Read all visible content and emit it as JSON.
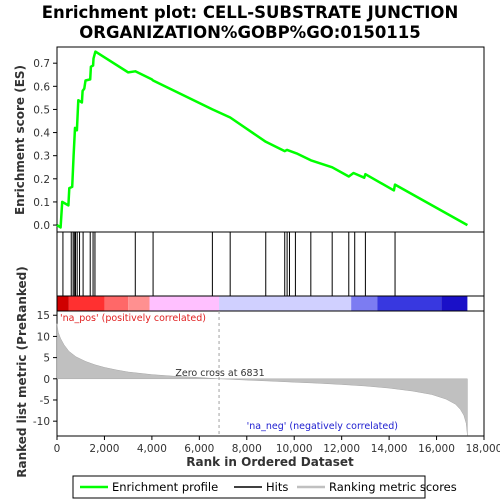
{
  "title_lines": [
    "Enrichment plot: CELL-SUBSTRATE JUNCTION",
    "ORGANIZATION%GOBP%GO:0150115"
  ],
  "colors": {
    "enrichment_line": "#00ff00",
    "hit_line": "#000000",
    "metric_fill": "#c0c0c0",
    "pos_label": "#e02020",
    "neg_label": "#2020d0",
    "zero_cross_line": "#a0a0a0"
  },
  "chart_data": [
    {
      "type": "line",
      "panel": "enrichment-profile",
      "ylabel": "Enrichment score (ES)",
      "xlim": [
        0,
        18000
      ],
      "ylim": [
        -0.03,
        0.77
      ],
      "y_ticks": [
        "0.0",
        "0.1",
        "0.2",
        "0.3",
        "0.4",
        "0.5",
        "0.6",
        "0.7"
      ],
      "grid": false,
      "series": [
        {
          "name": "Enrichment profile",
          "points": [
            [
              0,
              0.0
            ],
            [
              150,
              -0.01
            ],
            [
              220,
              0.1
            ],
            [
              480,
              0.085
            ],
            [
              520,
              0.16
            ],
            [
              640,
              0.165
            ],
            [
              700,
              0.3
            ],
            [
              760,
              0.42
            ],
            [
              840,
              0.41
            ],
            [
              900,
              0.54
            ],
            [
              1050,
              0.53
            ],
            [
              1080,
              0.58
            ],
            [
              1150,
              0.59
            ],
            [
              1200,
              0.625
            ],
            [
              1400,
              0.63
            ],
            [
              1430,
              0.685
            ],
            [
              1520,
              0.69
            ],
            [
              1540,
              0.72
            ],
            [
              1620,
              0.75
            ],
            [
              3000,
              0.66
            ],
            [
              3300,
              0.665
            ],
            [
              4000,
              0.63
            ],
            [
              4050,
              0.625
            ],
            [
              6550,
              0.5
            ],
            [
              7300,
              0.465
            ],
            [
              8800,
              0.36
            ],
            [
              9600,
              0.32
            ],
            [
              9700,
              0.325
            ],
            [
              10100,
              0.31
            ],
            [
              10700,
              0.28
            ],
            [
              11600,
              0.25
            ],
            [
              12300,
              0.21
            ],
            [
              12500,
              0.225
            ],
            [
              12950,
              0.205
            ],
            [
              13000,
              0.22
            ],
            [
              14200,
              0.15
            ],
            [
              14250,
              0.175
            ],
            [
              17300,
              0.0
            ]
          ]
        }
      ]
    },
    {
      "type": "hits",
      "panel": "gene-hits",
      "name": "Hits",
      "positions": [
        250,
        600,
        680,
        730,
        780,
        850,
        950,
        1100,
        1400,
        1520,
        1600,
        3300,
        4050,
        6550,
        7300,
        8800,
        9600,
        9700,
        9800,
        10050,
        10700,
        11600,
        12300,
        12550,
        13000,
        14250
      ]
    },
    {
      "type": "heatmap",
      "panel": "rank-color-bar",
      "segments": [
        {
          "start": 0,
          "end": 500,
          "color": "#d00000"
        },
        {
          "start": 500,
          "end": 2000,
          "color": "#ff3030"
        },
        {
          "start": 2000,
          "end": 3000,
          "color": "#ff6868"
        },
        {
          "start": 3000,
          "end": 3900,
          "color": "#ff9090"
        },
        {
          "start": 3900,
          "end": 6831,
          "color": "#ffc0ff"
        },
        {
          "start": 6831,
          "end": 12400,
          "color": "#d0d0ff"
        },
        {
          "start": 12400,
          "end": 13500,
          "color": "#7c7cf2"
        },
        {
          "start": 13500,
          "end": 16200,
          "color": "#3838e0"
        },
        {
          "start": 16200,
          "end": 17300,
          "color": "#1a10c8"
        }
      ]
    },
    {
      "type": "area",
      "panel": "ranked-list-metric",
      "name": "Ranking metric scores",
      "xlabel": "Rank in Ordered Dataset",
      "ylabel": "Ranked list metric (PreRanked)",
      "xlim": [
        0,
        18000
      ],
      "ylim": [
        -13.5,
        16
      ],
      "y_ticks": [
        15,
        10,
        5,
        0,
        -5,
        -10
      ],
      "x_ticks": [
        "0",
        "2,000",
        "4,000",
        "6,000",
        "8,000",
        "10,000",
        "12,000",
        "14,000",
        "16,000",
        "18,000"
      ],
      "x": [
        0,
        50,
        150,
        300,
        500,
        800,
        1200,
        1600,
        2000,
        2500,
        3000,
        3500,
        4000,
        5000,
        6000,
        6831,
        8000,
        9000,
        10000,
        11000,
        12000,
        13000,
        14000,
        15000,
        15800,
        16400,
        16800,
        17000,
        17150,
        17250,
        17300
      ],
      "values": [
        13.0,
        11.0,
        9.5,
        8.0,
        6.5,
        5.2,
        4.1,
        3.3,
        2.7,
        2.1,
        1.6,
        1.3,
        1.0,
        0.6,
        0.3,
        0.0,
        -0.3,
        -0.55,
        -0.8,
        -1.05,
        -1.35,
        -1.7,
        -2.2,
        -2.9,
        -3.7,
        -4.8,
        -6.0,
        -7.2,
        -8.6,
        -10.5,
        -13.3
      ],
      "annotations": {
        "positive": "'na_pos' (positively correlated)",
        "negative": "'na_neg' (negatively correlated)",
        "zero_cross": "Zero cross at 6831"
      },
      "zero_cross_rank": 6831
    }
  ],
  "legend": {
    "items": [
      {
        "label": "Enrichment profile",
        "icon": "green-line-icon"
      },
      {
        "label": "Hits",
        "icon": "black-line-icon"
      },
      {
        "label": "Ranking metric scores",
        "icon": "gray-line-icon"
      }
    ]
  }
}
